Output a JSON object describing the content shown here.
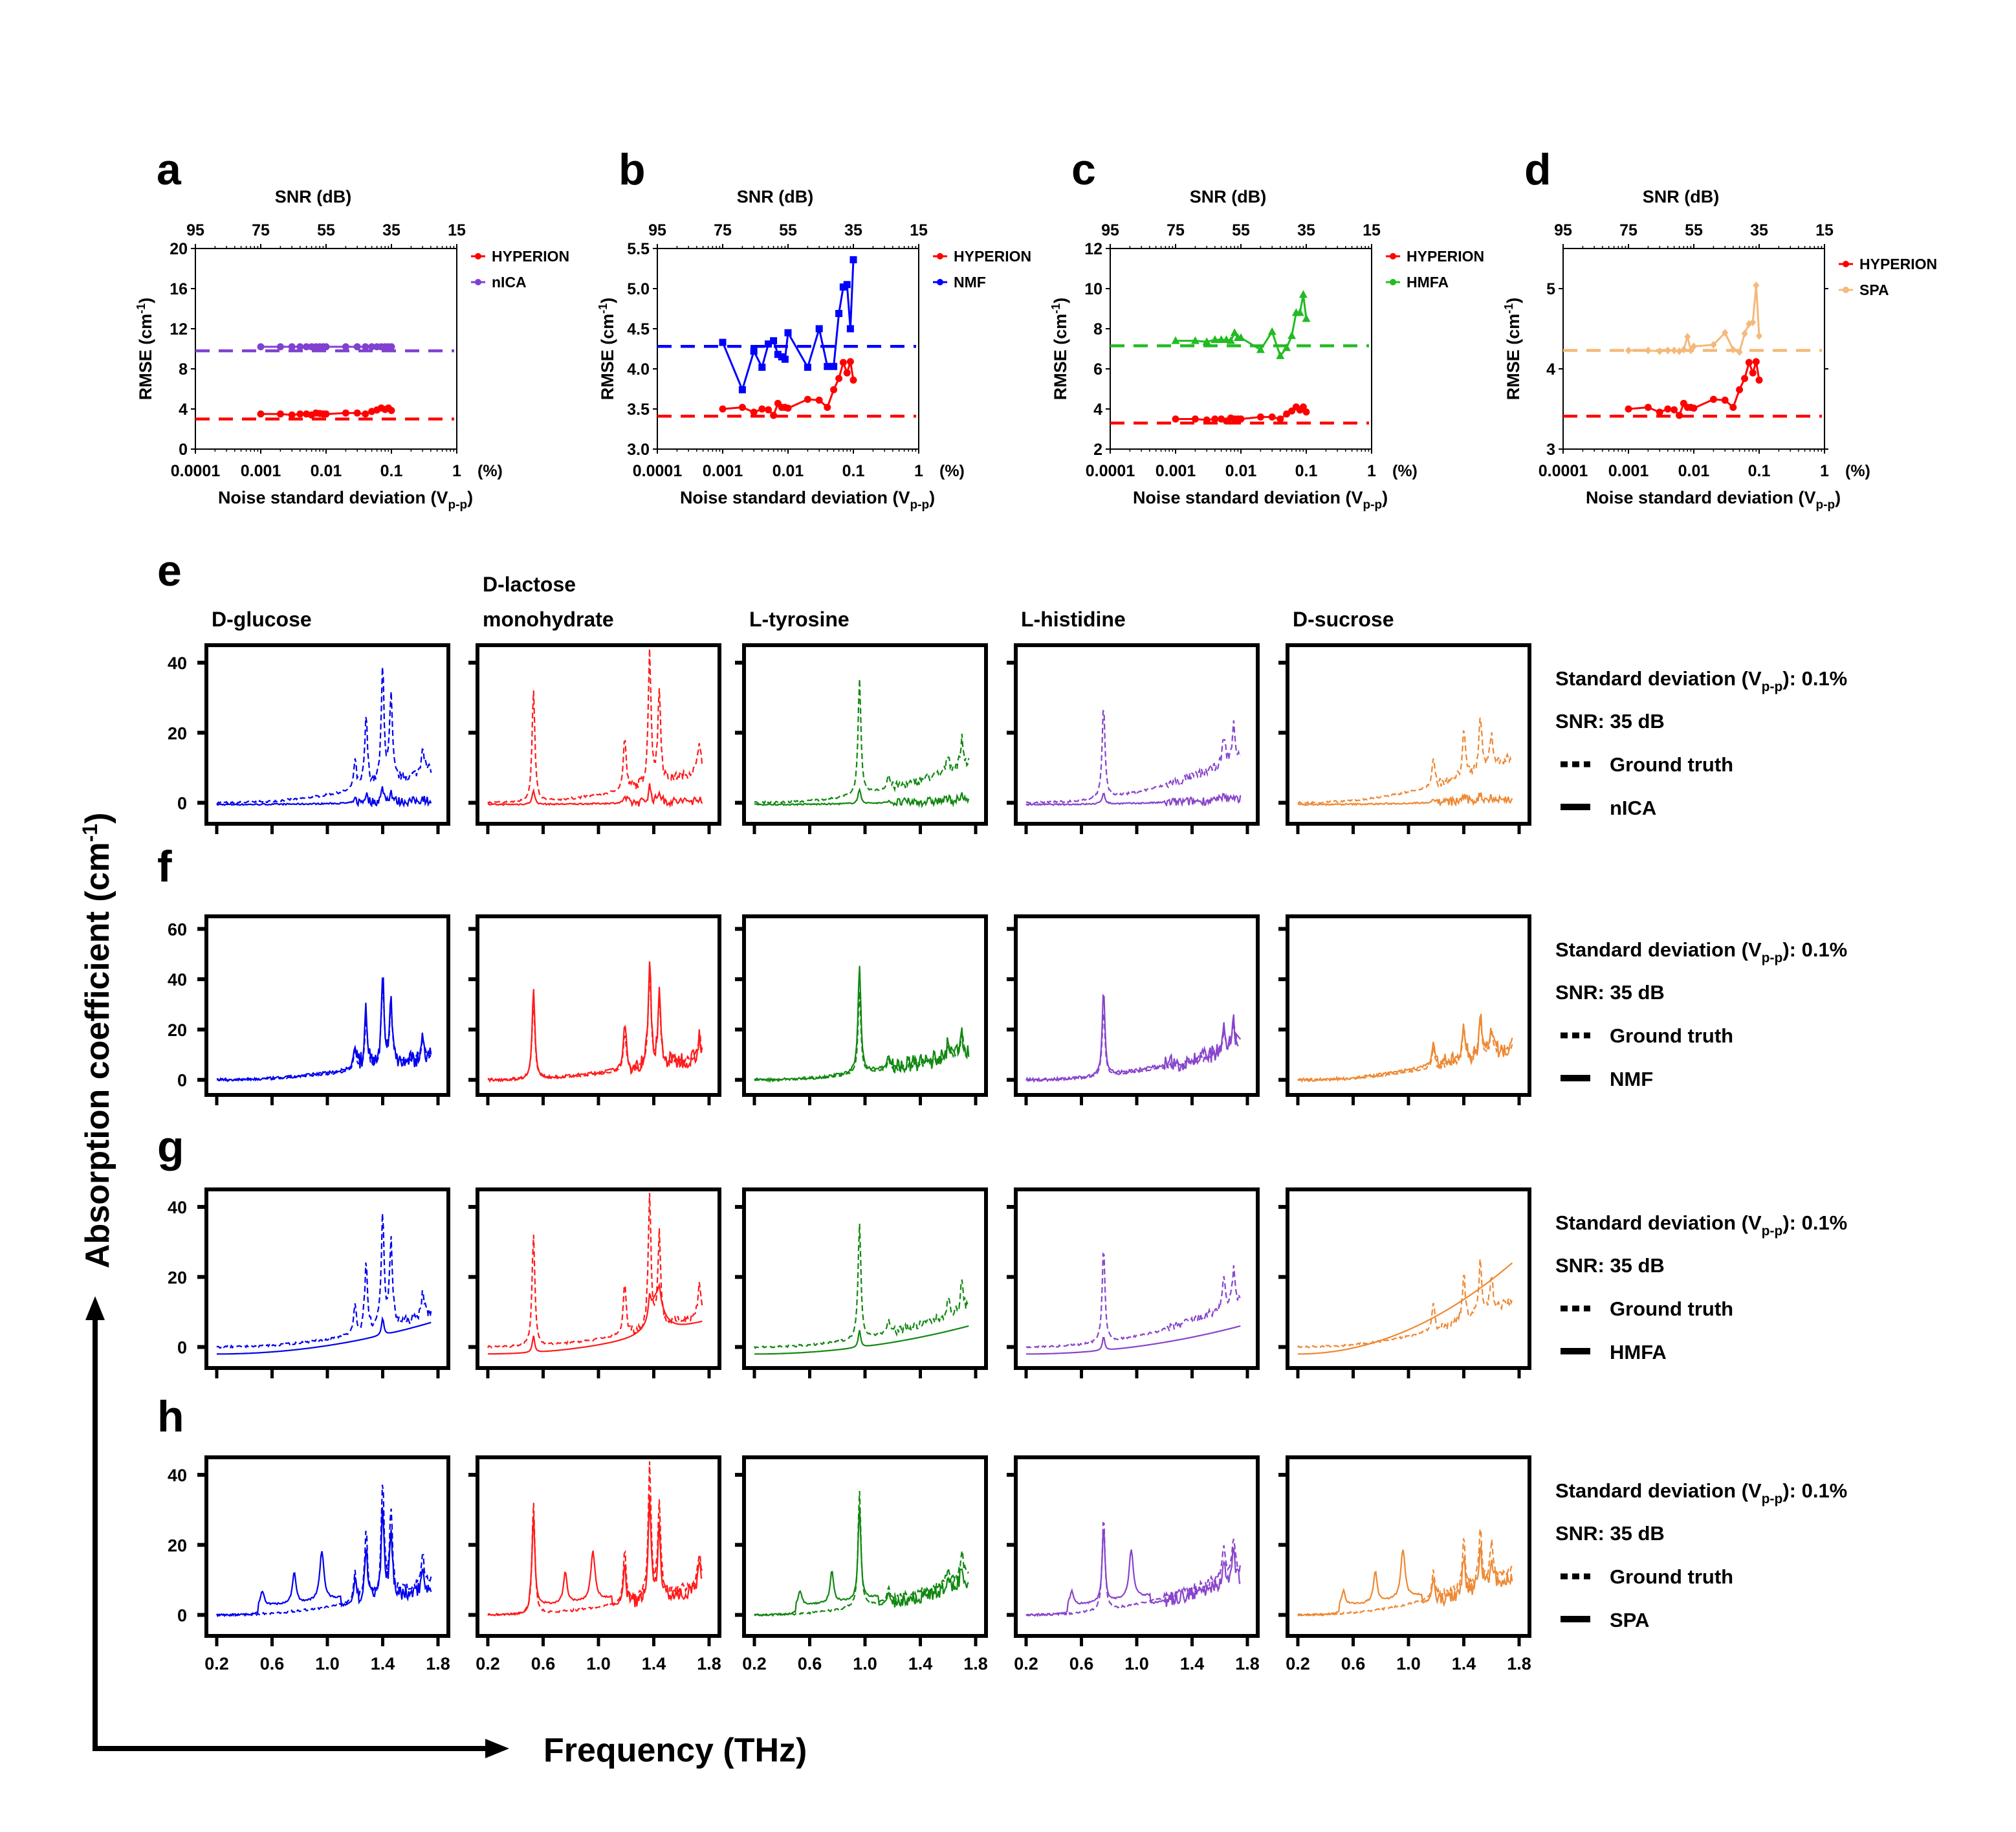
{
  "figure": {
    "rmse_panels": [
      {
        "letter": "a",
        "top_axis_title": "SNR (dB)",
        "top_ticks": [
          "95",
          "75",
          "55",
          "35",
          "15"
        ],
        "y_title": "RMSE (cm",
        "y_title_sup": "-1",
        "y_title_end": ")",
        "x_title": "Noise standard deviation (V",
        "x_title_sub": "p-p",
        "x_title_end": ")",
        "x_ticks": [
          "0.0001",
          "0.001",
          "0.01",
          "0.1",
          "1"
        ],
        "x_unit": "(%)"
      },
      {
        "letter": "b",
        "top_axis_title": "SNR (dB)",
        "top_ticks": [
          "95",
          "75",
          "55",
          "35",
          "15"
        ],
        "y_title": "RMSE (cm",
        "y_title_sup": "-1",
        "y_title_end": ")",
        "x_title": "Noise standard deviation (V",
        "x_title_sub": "p-p",
        "x_title_end": ")",
        "x_ticks": [
          "0.0001",
          "0.001",
          "0.01",
          "0.1",
          "1"
        ],
        "x_unit": "(%)"
      },
      {
        "letter": "c",
        "top_axis_title": "SNR (dB)",
        "top_ticks": [
          "95",
          "75",
          "55",
          "35",
          "15"
        ],
        "y_title": "RMSE (cm",
        "y_title_sup": "-1",
        "y_title_end": ")",
        "x_title": "Noise standard deviation (V",
        "x_title_sub": "p-p",
        "x_title_end": ")",
        "x_ticks": [
          "0.0001",
          "0.001",
          "0.01",
          "0.1",
          "1"
        ],
        "x_unit": "(%)"
      },
      {
        "letter": "d",
        "top_axis_title": "SNR (dB)",
        "top_ticks": [
          "95",
          "75",
          "55",
          "35",
          "15"
        ],
        "y_title": "RMSE (cm",
        "y_title_sup": "-1",
        "y_title_end": ")",
        "x_title": "Noise standard deviation (V",
        "x_title_sub": "p-p",
        "x_title_end": ")",
        "x_ticks": [
          "0.0001",
          "0.001",
          "0.01",
          "0.1",
          "1"
        ],
        "x_unit": "(%)"
      }
    ],
    "spectra_rows": [
      {
        "letter": "e",
        "method": "nICA"
      },
      {
        "letter": "f",
        "method": "NMF"
      },
      {
        "letter": "g",
        "method": "HMFA"
      },
      {
        "letter": "h",
        "method": "SPA"
      }
    ],
    "compounds": [
      {
        "name_line1": "D-glucose",
        "name_line2": ""
      },
      {
        "name_line1": "D-lactose",
        "name_line2": "monohydrate"
      },
      {
        "name_line1": "L-tyrosine",
        "name_line2": ""
      },
      {
        "name_line1": "L-histidine",
        "name_line2": ""
      },
      {
        "name_line1": "D-sucrose",
        "name_line2": ""
      }
    ],
    "spectra_legend": {
      "std_label": "Standard deviation (V",
      "std_sub": "p-p",
      "std_value": "): 0.1%",
      "snr_label": "SNR: 35 dB",
      "ground_truth_label": "Ground truth"
    },
    "global_y_title": "Absorption coefficient (cm",
    "global_y_sup": "-1",
    "global_y_end": ")",
    "global_x_title": "Frequency (THz)",
    "frequency_ticks": [
      "0.2",
      "0.6",
      "1.0",
      "1.4",
      "1.8"
    ]
  },
  "chart_data": [
    {
      "panel": "a",
      "type": "line",
      "xscale": "log",
      "xlabel": "Noise standard deviation (Vp-p) (%)",
      "ylabel": "RMSE (cm-1)",
      "top_xlabel": "SNR (dB)",
      "top_xticks": [
        95,
        75,
        55,
        35,
        15
      ],
      "xlim": [
        0.0001,
        1
      ],
      "ylim": [
        0,
        20
      ],
      "yticks": [
        0,
        4,
        8,
        12,
        16,
        20
      ],
      "ytick_labels": [
        "0",
        "4",
        "8",
        "12",
        "16",
        "20"
      ],
      "legend_position": "right",
      "x": [
        0.001,
        0.002,
        0.003,
        0.004,
        0.005,
        0.006,
        0.007,
        0.008,
        0.009,
        0.01,
        0.02,
        0.03,
        0.04,
        0.05,
        0.06,
        0.07,
        0.08,
        0.09,
        0.1
      ],
      "series": [
        {
          "name": "HYPERION",
          "color": "#ff0000",
          "marker": "circle",
          "values": [
            3.5,
            3.5,
            3.4,
            3.5,
            3.5,
            3.4,
            3.6,
            3.55,
            3.5,
            3.5,
            3.6,
            3.6,
            3.5,
            3.75,
            3.9,
            4.1,
            3.95,
            4.1,
            3.85
          ],
          "baseline": 3.0
        },
        {
          "name": "nICA",
          "color": "#8040d0",
          "marker": "circle",
          "values": [
            10.2,
            10.2,
            10.2,
            10.2,
            10.2,
            10.2,
            10.2,
            10.2,
            10.2,
            10.2,
            10.2,
            10.2,
            10.2,
            10.2,
            10.2,
            10.2,
            10.2,
            10.2,
            10.2
          ],
          "baseline": 9.8
        }
      ]
    },
    {
      "panel": "b",
      "type": "line",
      "xscale": "log",
      "xlabel": "Noise standard deviation (Vp-p) (%)",
      "ylabel": "RMSE (cm-1)",
      "top_xlabel": "SNR (dB)",
      "top_xticks": [
        95,
        75,
        55,
        35,
        15
      ],
      "xlim": [
        0.0001,
        1
      ],
      "ylim": [
        3.0,
        5.5
      ],
      "yticks": [
        3.0,
        3.5,
        4.0,
        4.5,
        5.0,
        5.5
      ],
      "ytick_labels": [
        "3.0",
        "3.5",
        "4.0",
        "4.5",
        "5.0",
        "5.5"
      ],
      "legend_position": "right",
      "x": [
        0.001,
        0.002,
        0.003,
        0.004,
        0.005,
        0.006,
        0.007,
        0.008,
        0.009,
        0.01,
        0.02,
        0.03,
        0.04,
        0.05,
        0.06,
        0.07,
        0.08,
        0.09,
        0.1
      ],
      "series": [
        {
          "name": "HYPERION",
          "color": "#ff0000",
          "marker": "circle",
          "values": [
            3.5,
            3.52,
            3.46,
            3.5,
            3.49,
            3.42,
            3.57,
            3.52,
            3.52,
            3.51,
            3.62,
            3.61,
            3.52,
            3.74,
            3.88,
            4.08,
            3.95,
            4.09,
            3.86
          ],
          "baseline": 3.41
        },
        {
          "name": "NMF",
          "color": "#0000ff",
          "marker": "square",
          "values": [
            4.33,
            3.74,
            4.22,
            4.02,
            4.31,
            4.35,
            4.18,
            4.15,
            4.12,
            4.45,
            4.02,
            4.5,
            4.03,
            4.03,
            4.69,
            5.02,
            5.05,
            4.5,
            5.36
          ],
          "baseline": 4.28
        }
      ]
    },
    {
      "panel": "c",
      "type": "line",
      "xscale": "log",
      "xlabel": "Noise standard deviation (Vp-p) (%)",
      "ylabel": "RMSE (cm-1)",
      "top_xlabel": "SNR (dB)",
      "top_xticks": [
        95,
        75,
        55,
        35,
        15
      ],
      "xlim": [
        0.0001,
        1
      ],
      "ylim": [
        2,
        12
      ],
      "yticks": [
        2,
        4,
        6,
        8,
        10,
        12
      ],
      "ytick_labels": [
        "2",
        "4",
        "6",
        "8",
        "10",
        "12"
      ],
      "legend_position": "right",
      "x": [
        0.001,
        0.002,
        0.003,
        0.004,
        0.005,
        0.006,
        0.007,
        0.008,
        0.009,
        0.01,
        0.02,
        0.03,
        0.04,
        0.05,
        0.06,
        0.07,
        0.08,
        0.09,
        0.1
      ],
      "series": [
        {
          "name": "HYPERION",
          "color": "#ff0000",
          "marker": "circle",
          "values": [
            3.5,
            3.5,
            3.45,
            3.5,
            3.5,
            3.4,
            3.55,
            3.5,
            3.5,
            3.5,
            3.6,
            3.6,
            3.5,
            3.75,
            3.9,
            4.1,
            3.95,
            4.1,
            3.85
          ],
          "baseline": 3.3
        },
        {
          "name": "HMFA",
          "color": "#22bb22",
          "marker": "triangle",
          "values": [
            7.4,
            7.4,
            7.35,
            7.45,
            7.45,
            7.45,
            7.4,
            7.8,
            7.55,
            7.55,
            6.95,
            7.85,
            6.65,
            7.05,
            7.65,
            8.8,
            8.8,
            9.7,
            8.5
          ],
          "baseline": 7.15
        }
      ]
    },
    {
      "panel": "d",
      "type": "line",
      "xscale": "log",
      "xlabel": "Noise standard deviation (Vp-p) (%)",
      "ylabel": "RMSE (cm-1)",
      "top_xlabel": "SNR (dB)",
      "top_xticks": [
        95,
        75,
        55,
        35,
        15
      ],
      "xlim": [
        0.0001,
        1
      ],
      "ylim": [
        3,
        5.5
      ],
      "yticks": [
        3,
        4,
        5
      ],
      "ytick_labels": [
        "3",
        "4",
        "5"
      ],
      "legend_position": "right",
      "x": [
        0.001,
        0.002,
        0.003,
        0.004,
        0.005,
        0.006,
        0.007,
        0.008,
        0.009,
        0.01,
        0.02,
        0.03,
        0.04,
        0.05,
        0.06,
        0.07,
        0.08,
        0.09,
        0.1
      ],
      "series": [
        {
          "name": "HYPERION",
          "color": "#ff0000",
          "marker": "circle",
          "values": [
            3.5,
            3.52,
            3.46,
            3.5,
            3.49,
            3.42,
            3.57,
            3.52,
            3.52,
            3.51,
            3.62,
            3.61,
            3.52,
            3.74,
            3.88,
            4.08,
            3.95,
            4.09,
            3.86
          ],
          "baseline": 3.41
        },
        {
          "name": "SPA",
          "color": "#f5b97a",
          "marker": "diamond",
          "values": [
            4.23,
            4.23,
            4.22,
            4.23,
            4.23,
            4.22,
            4.24,
            4.4,
            4.23,
            4.28,
            4.3,
            4.45,
            4.24,
            4.21,
            4.44,
            4.56,
            4.58,
            5.04,
            4.41
          ],
          "baseline": 4.23
        }
      ]
    },
    {
      "panel": "e-h",
      "type": "line",
      "title": "Absorption spectra recovered at 0.1% noise std (SNR 35 dB)",
      "xlabel": "Frequency (THz)",
      "ylabel": "Absorption coefficient (cm-1)",
      "xlim": [
        0.2,
        1.8
      ],
      "xticks": [
        0.2,
        0.6,
        1.0,
        1.4,
        1.8
      ],
      "compound_colors": {
        "D-glucose": "#0000ee",
        "D-lactose monohydrate": "#ff1a1a",
        "L-tyrosine": "#118811",
        "L-histidine": "#8844cc",
        "D-sucrose": "#ee8833"
      },
      "ground_truth_peaks_THz": {
        "D-glucose": [
          {
            "f": 1.2,
            "a": 8
          },
          {
            "f": 1.28,
            "a": 20
          },
          {
            "f": 1.4,
            "a": 33
          },
          {
            "f": 1.46,
            "a": 24
          },
          {
            "f": 1.69,
            "a": 8
          }
        ],
        "D-lactose monohydrate": [
          {
            "f": 0.53,
            "a": 32
          },
          {
            "f": 1.19,
            "a": 15
          },
          {
            "f": 1.37,
            "a": 38
          },
          {
            "f": 1.44,
            "a": 26
          },
          {
            "f": 1.73,
            "a": 9
          }
        ],
        "L-tyrosine": [
          {
            "f": 0.96,
            "a": 33
          },
          {
            "f": 1.17,
            "a": 4
          },
          {
            "f": 1.6,
            "a": 5
          },
          {
            "f": 1.7,
            "a": 8
          }
        ],
        "L-histidine": [
          {
            "f": 0.76,
            "a": 27
          },
          {
            "f": 1.63,
            "a": 8
          },
          {
            "f": 1.7,
            "a": 10
          }
        ],
        "D-sucrose": [
          {
            "f": 1.18,
            "a": 8
          },
          {
            "f": 1.4,
            "a": 14
          },
          {
            "f": 1.52,
            "a": 16
          },
          {
            "f": 1.6,
            "a": 10
          }
        ]
      },
      "ground_truth_baseline_at_1.8THz": {
        "D-glucose": 10,
        "D-lactose monohydrate": 10,
        "L-tyrosine": 12,
        "L-histidine": 14,
        "D-sucrose": 14
      },
      "rows": [
        {
          "method": "nICA",
          "ylim": [
            -6,
            45
          ],
          "yticks": [
            0,
            20,
            40
          ],
          "estimate_peak_scale": 0.12,
          "estimate_baseline_scale": 0.05
        },
        {
          "method": "NMF",
          "ylim": [
            -6,
            65
          ],
          "yticks": [
            0,
            20,
            40,
            60
          ],
          "estimate_peak_scale": 1.3,
          "estimate_baseline_scale": 0.85
        },
        {
          "method": "HMFA",
          "ylim": [
            -6,
            45
          ],
          "yticks": [
            0,
            20,
            40
          ],
          "estimate_peak_scale": 0.12,
          "estimate_smooth_end": {
            "D-glucose": 7,
            "D-lactose monohydrate": 7,
            "L-tyrosine": 6,
            "L-histidine": 6,
            "D-sucrose": 24
          }
        },
        {
          "method": "SPA",
          "ylim": [
            -6,
            45
          ],
          "yticks": [
            0,
            20,
            40
          ],
          "estimate_peak_scale": 0.8,
          "spurious_peaks_THz": [
            0.53,
            0.76,
            0.96
          ]
        }
      ]
    }
  ]
}
